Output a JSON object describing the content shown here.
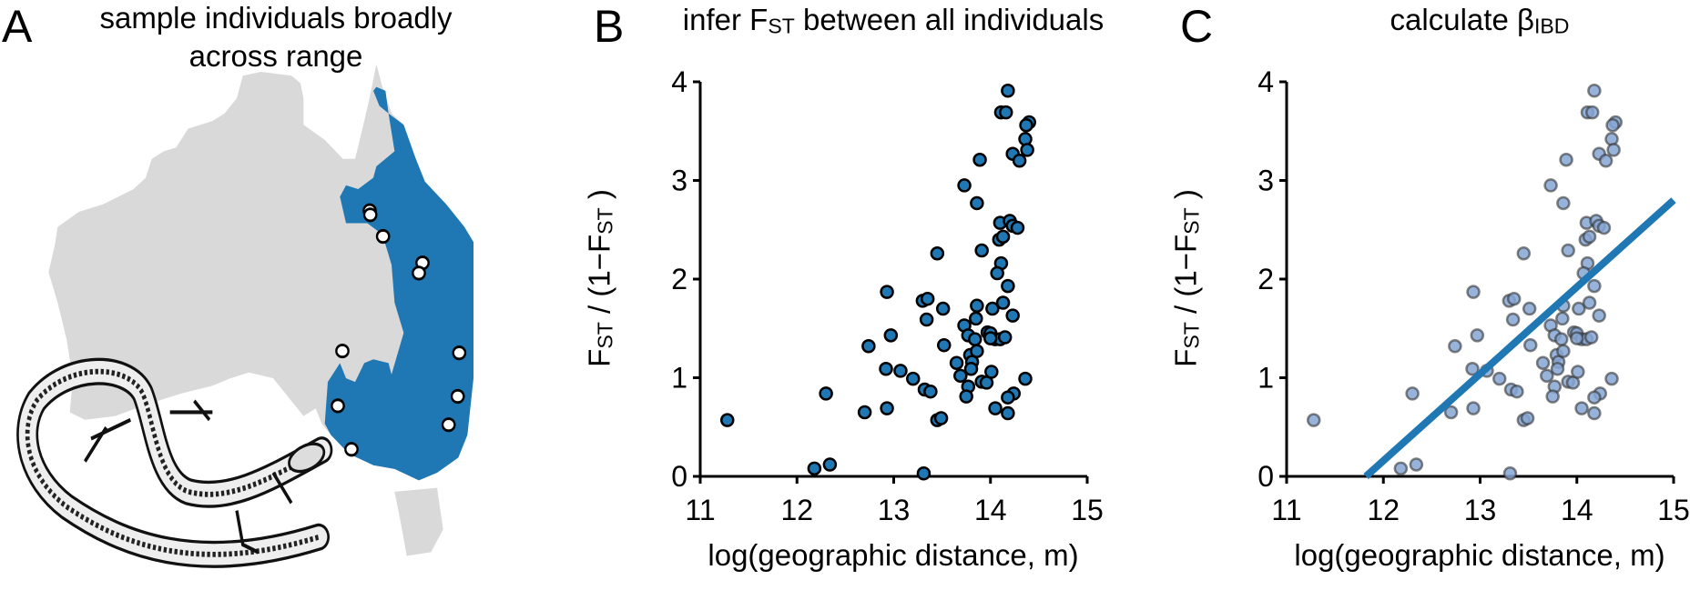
{
  "panel_a": {
    "letter": "A",
    "title_line1": "sample individuals broadly",
    "title_line2": "across range",
    "colors": {
      "land": "#d9d9d9",
      "range": "#1f78b4",
      "sample": "#ffffff"
    }
  },
  "panel_b": {
    "letter": "B",
    "title": {
      "pre": "infer F",
      "sub": "ST",
      "post": " between all individuals"
    },
    "ylabel": {
      "p1": "F",
      "s1": "ST",
      "p2": " / (1−F",
      "s2": "ST",
      "p3": " )"
    },
    "xlabel": "log(geographic distance, m)"
  },
  "panel_c": {
    "letter": "C",
    "title": {
      "pre": "calculate β",
      "sub": "IBD"
    },
    "ylabel": {
      "p1": "F",
      "s1": "ST",
      "p2": " / (1−F",
      "s2": "ST",
      "p3": " )"
    },
    "xlabel": "log(geographic distance, m)"
  },
  "chart_data": [
    {
      "type": "scatter",
      "panel": "B",
      "xlabel": "log(geographic distance, m)",
      "ylabel": "FST / (1-FST )",
      "xlim": [
        11,
        15
      ],
      "ylim": [
        0,
        4
      ],
      "xticks": [
        "11",
        "12",
        "13",
        "14",
        "15"
      ],
      "yticks": [
        "0",
        "1",
        "2",
        "3",
        "4"
      ],
      "grid": false,
      "marker_color": "#1f78b4",
      "points": [
        [
          11.28,
          0.57
        ],
        [
          12.3,
          0.84
        ],
        [
          12.18,
          0.08
        ],
        [
          12.34,
          0.12
        ],
        [
          13.31,
          0.03
        ],
        [
          12.7,
          0.65
        ],
        [
          12.74,
          1.32
        ],
        [
          12.93,
          1.87
        ],
        [
          12.97,
          1.43
        ],
        [
          12.92,
          1.09
        ],
        [
          12.93,
          0.69
        ],
        [
          13.07,
          1.07
        ],
        [
          13.2,
          0.99
        ],
        [
          13.32,
          0.88
        ],
        [
          13.38,
          0.86
        ],
        [
          13.45,
          2.26
        ],
        [
          13.3,
          1.78
        ],
        [
          13.35,
          1.8
        ],
        [
          13.34,
          1.59
        ],
        [
          13.51,
          1.7
        ],
        [
          13.52,
          1.33
        ],
        [
          13.45,
          0.57
        ],
        [
          13.49,
          0.59
        ],
        [
          13.65,
          1.15
        ],
        [
          13.69,
          1.02
        ],
        [
          13.73,
          2.95
        ],
        [
          13.86,
          2.77
        ],
        [
          13.89,
          3.21
        ],
        [
          13.91,
          2.29
        ],
        [
          13.73,
          1.53
        ],
        [
          13.77,
          1.43
        ],
        [
          13.85,
          1.6
        ],
        [
          13.86,
          1.73
        ],
        [
          13.84,
          1.39
        ],
        [
          13.79,
          1.23
        ],
        [
          13.81,
          1.16
        ],
        [
          13.8,
          1.09
        ],
        [
          13.86,
          1.27
        ],
        [
          13.77,
          0.91
        ],
        [
          13.75,
          0.81
        ],
        [
          13.91,
          0.96
        ],
        [
          13.96,
          0.95
        ],
        [
          14.01,
          1.06
        ],
        [
          14.02,
          1.7
        ],
        [
          13.97,
          1.46
        ],
        [
          14.0,
          1.45
        ],
        [
          14.05,
          1.39
        ],
        [
          14.1,
          1.39
        ],
        [
          14.15,
          1.41
        ],
        [
          14.0,
          1.4
        ],
        [
          14.05,
          0.69
        ],
        [
          14.18,
          3.91
        ],
        [
          14.11,
          3.69
        ],
        [
          14.16,
          3.69
        ],
        [
          14.4,
          3.59
        ],
        [
          14.37,
          3.56
        ],
        [
          14.36,
          3.42
        ],
        [
          14.38,
          3.31
        ],
        [
          14.23,
          3.27
        ],
        [
          14.3,
          3.2
        ],
        [
          14.1,
          2.57
        ],
        [
          14.2,
          2.59
        ],
        [
          14.23,
          2.54
        ],
        [
          14.28,
          2.52
        ],
        [
          14.09,
          2.4
        ],
        [
          14.13,
          2.43
        ],
        [
          14.11,
          2.16
        ],
        [
          14.07,
          2.06
        ],
        [
          14.18,
          1.93
        ],
        [
          14.13,
          1.76
        ],
        [
          14.23,
          1.63
        ],
        [
          14.36,
          0.99
        ],
        [
          14.24,
          0.84
        ],
        [
          14.18,
          0.8
        ],
        [
          14.18,
          0.64
        ]
      ]
    },
    {
      "type": "scatter",
      "panel": "C",
      "xlabel": "log(geographic distance, m)",
      "ylabel": "FST / (1-FST )",
      "xlim": [
        11,
        15
      ],
      "ylim": [
        0,
        4
      ],
      "xticks": [
        "11",
        "12",
        "13",
        "14",
        "15"
      ],
      "yticks": [
        "0",
        "1",
        "2",
        "3",
        "4"
      ],
      "grid": false,
      "marker_color": "#86a6d4",
      "line_color": "#1f78b4",
      "fit_line": {
        "x": [
          11.82,
          15
        ],
        "y": [
          0,
          2.8
        ]
      },
      "points": "same as panel B"
    }
  ]
}
